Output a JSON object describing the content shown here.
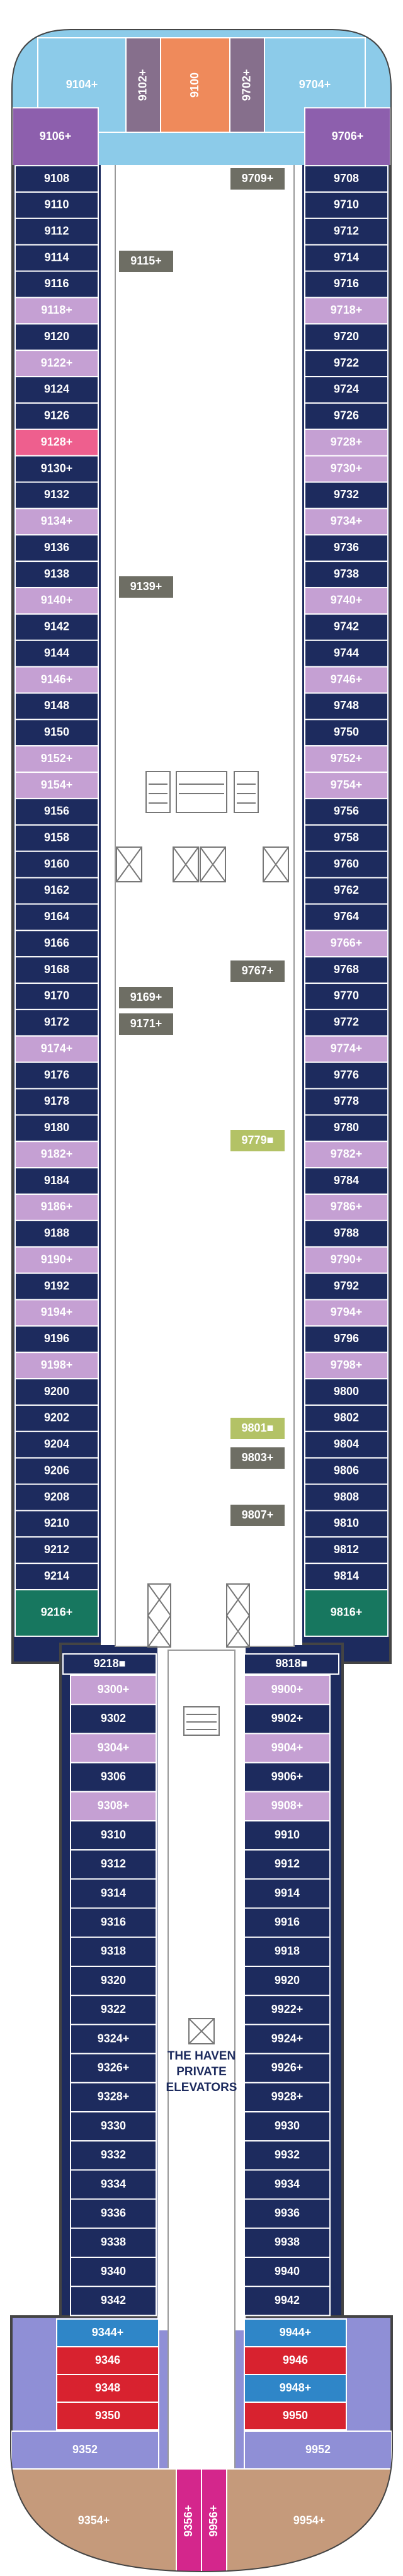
{
  "top_cells": [
    {
      "label": "9104+",
      "color": "#8ccbe9"
    },
    {
      "label": "9102+",
      "color": "#866f8c"
    },
    {
      "label": "9100",
      "color": "#ef8a5b"
    },
    {
      "label": "9702+",
      "color": "#866f8c"
    },
    {
      "label": "9704+",
      "color": "#8ccbe9"
    }
  ],
  "upper_left": [
    {
      "label": "9106+",
      "color": "#8d5fad"
    },
    {
      "label": "9108",
      "color": "#1d2b5e"
    },
    {
      "label": "9110",
      "color": "#1d2b5e"
    },
    {
      "label": "9112",
      "color": "#1d2b5e"
    },
    {
      "label": "9114",
      "color": "#1d2b5e"
    },
    {
      "label": "9116",
      "color": "#1d2b5e"
    },
    {
      "label": "9118+",
      "color": "#c5a0d3"
    },
    {
      "label": "9120",
      "color": "#1d2b5e"
    },
    {
      "label": "9122+",
      "color": "#c5a0d3"
    },
    {
      "label": "9124",
      "color": "#1d2b5e"
    },
    {
      "label": "9126",
      "color": "#1d2b5e"
    },
    {
      "label": "9128+",
      "color": "#ee5f8e"
    },
    {
      "label": "9130+",
      "color": "#1d2b5e"
    },
    {
      "label": "9132",
      "color": "#1d2b5e"
    },
    {
      "label": "9134+",
      "color": "#c5a0d3"
    },
    {
      "label": "9136",
      "color": "#1d2b5e"
    },
    {
      "label": "9138",
      "color": "#1d2b5e"
    },
    {
      "label": "9140+",
      "color": "#c5a0d3"
    },
    {
      "label": "9142",
      "color": "#1d2b5e"
    },
    {
      "label": "9144",
      "color": "#1d2b5e"
    },
    {
      "label": "9146+",
      "color": "#c5a0d3"
    },
    {
      "label": "9148",
      "color": "#1d2b5e"
    },
    {
      "label": "9150",
      "color": "#1d2b5e"
    },
    {
      "label": "9152+",
      "color": "#c5a0d3"
    },
    {
      "label": "9154+",
      "color": "#c5a0d3"
    },
    {
      "label": "9156",
      "color": "#1d2b5e"
    },
    {
      "label": "9158",
      "color": "#1d2b5e"
    },
    {
      "label": "9160",
      "color": "#1d2b5e"
    },
    {
      "label": "9162",
      "color": "#1d2b5e"
    },
    {
      "label": "9164",
      "color": "#1d2b5e"
    },
    {
      "label": "9166",
      "color": "#1d2b5e"
    },
    {
      "label": "9168",
      "color": "#1d2b5e"
    },
    {
      "label": "9170",
      "color": "#1d2b5e"
    },
    {
      "label": "9172",
      "color": "#1d2b5e"
    },
    {
      "label": "9174+",
      "color": "#c5a0d3"
    },
    {
      "label": "9176",
      "color": "#1d2b5e"
    },
    {
      "label": "9178",
      "color": "#1d2b5e"
    },
    {
      "label": "9180",
      "color": "#1d2b5e"
    },
    {
      "label": "9182+",
      "color": "#c5a0d3"
    },
    {
      "label": "9184",
      "color": "#1d2b5e"
    },
    {
      "label": "9186+",
      "color": "#c5a0d3"
    },
    {
      "label": "9188",
      "color": "#1d2b5e"
    },
    {
      "label": "9190+",
      "color": "#c5a0d3"
    },
    {
      "label": "9192",
      "color": "#1d2b5e"
    },
    {
      "label": "9194+",
      "color": "#c5a0d3"
    },
    {
      "label": "9196",
      "color": "#1d2b5e"
    },
    {
      "label": "9198+",
      "color": "#c5a0d3"
    },
    {
      "label": "9200",
      "color": "#1d2b5e"
    },
    {
      "label": "9202",
      "color": "#1d2b5e"
    },
    {
      "label": "9204",
      "color": "#1d2b5e"
    },
    {
      "label": "9206",
      "color": "#1d2b5e"
    },
    {
      "label": "9208",
      "color": "#1d2b5e"
    },
    {
      "label": "9210",
      "color": "#1d2b5e"
    },
    {
      "label": "9212",
      "color": "#1d2b5e"
    },
    {
      "label": "9214",
      "color": "#1d2b5e"
    },
    {
      "label": "9216+",
      "color": "#17775f"
    }
  ],
  "upper_right": [
    {
      "label": "9706+",
      "color": "#8d5fad"
    },
    {
      "label": "9708",
      "color": "#1d2b5e"
    },
    {
      "label": "9710",
      "color": "#1d2b5e"
    },
    {
      "label": "9712",
      "color": "#1d2b5e"
    },
    {
      "label": "9714",
      "color": "#1d2b5e"
    },
    {
      "label": "9716",
      "color": "#1d2b5e"
    },
    {
      "label": "9718+",
      "color": "#c5a0d3"
    },
    {
      "label": "9720",
      "color": "#1d2b5e"
    },
    {
      "label": "9722",
      "color": "#1d2b5e"
    },
    {
      "label": "9724",
      "color": "#1d2b5e"
    },
    {
      "label": "9726",
      "color": "#1d2b5e"
    },
    {
      "label": "9728+",
      "color": "#c5a0d3"
    },
    {
      "label": "9730+",
      "color": "#c5a0d3"
    },
    {
      "label": "9732",
      "color": "#1d2b5e"
    },
    {
      "label": "9734+",
      "color": "#c5a0d3"
    },
    {
      "label": "9736",
      "color": "#1d2b5e"
    },
    {
      "label": "9738",
      "color": "#1d2b5e"
    },
    {
      "label": "9740+",
      "color": "#c5a0d3"
    },
    {
      "label": "9742",
      "color": "#1d2b5e"
    },
    {
      "label": "9744",
      "color": "#1d2b5e"
    },
    {
      "label": "9746+",
      "color": "#c5a0d3"
    },
    {
      "label": "9748",
      "color": "#1d2b5e"
    },
    {
      "label": "9750",
      "color": "#1d2b5e"
    },
    {
      "label": "9752+",
      "color": "#c5a0d3"
    },
    {
      "label": "9754+",
      "color": "#c5a0d3"
    },
    {
      "label": "9756",
      "color": "#1d2b5e"
    },
    {
      "label": "9758",
      "color": "#1d2b5e"
    },
    {
      "label": "9760",
      "color": "#1d2b5e"
    },
    {
      "label": "9762",
      "color": "#1d2b5e"
    },
    {
      "label": "9764",
      "color": "#1d2b5e"
    },
    {
      "label": "9766+",
      "color": "#c5a0d3"
    },
    {
      "label": "9768",
      "color": "#1d2b5e"
    },
    {
      "label": "9770",
      "color": "#1d2b5e"
    },
    {
      "label": "9772",
      "color": "#1d2b5e"
    },
    {
      "label": "9774+",
      "color": "#c5a0d3"
    },
    {
      "label": "9776",
      "color": "#1d2b5e"
    },
    {
      "label": "9778",
      "color": "#1d2b5e"
    },
    {
      "label": "9780",
      "color": "#1d2b5e"
    },
    {
      "label": "9782+",
      "color": "#c5a0d3"
    },
    {
      "label": "9784",
      "color": "#1d2b5e"
    },
    {
      "label": "9786+",
      "color": "#c5a0d3"
    },
    {
      "label": "9788",
      "color": "#1d2b5e"
    },
    {
      "label": "9790+",
      "color": "#c5a0d3"
    },
    {
      "label": "9792",
      "color": "#1d2b5e"
    },
    {
      "label": "9794+",
      "color": "#c5a0d3"
    },
    {
      "label": "9796",
      "color": "#1d2b5e"
    },
    {
      "label": "9798+",
      "color": "#c5a0d3"
    },
    {
      "label": "9800",
      "color": "#1d2b5e"
    },
    {
      "label": "9802",
      "color": "#1d2b5e"
    },
    {
      "label": "9804",
      "color": "#1d2b5e"
    },
    {
      "label": "9806",
      "color": "#1d2b5e"
    },
    {
      "label": "9808",
      "color": "#1d2b5e"
    },
    {
      "label": "9810",
      "color": "#1d2b5e"
    },
    {
      "label": "9812",
      "color": "#1d2b5e"
    },
    {
      "label": "9814",
      "color": "#1d2b5e"
    },
    {
      "label": "9816+",
      "color": "#17775f"
    }
  ],
  "inner_cabins": [
    {
      "label": "9709+",
      "color": "#6e6e64"
    },
    {
      "label": "9115+",
      "color": "#6e6e64"
    },
    {
      "label": "9139+",
      "color": "#6e6e64"
    },
    {
      "label": "9767+",
      "color": "#6e6e64"
    },
    {
      "label": "9169+",
      "color": "#6e6e64"
    },
    {
      "label": "9171+",
      "color": "#6e6e64"
    },
    {
      "label": "9779■",
      "color": "#b3c266"
    },
    {
      "label": "9801■",
      "color": "#b3c266"
    },
    {
      "label": "9803+",
      "color": "#6e6e64"
    },
    {
      "label": "9807+",
      "color": "#6e6e64"
    }
  ],
  "lower_left": [
    {
      "label": "9218■",
      "color": "#1d2b5e"
    },
    {
      "label": "9300+",
      "color": "#c5a0d3"
    },
    {
      "label": "9302",
      "color": "#1d2b5e"
    },
    {
      "label": "9304+",
      "color": "#c5a0d3"
    },
    {
      "label": "9306",
      "color": "#1d2b5e"
    },
    {
      "label": "9308+",
      "color": "#c5a0d3"
    },
    {
      "label": "9310",
      "color": "#1d2b5e"
    },
    {
      "label": "9312",
      "color": "#1d2b5e"
    },
    {
      "label": "9314",
      "color": "#1d2b5e"
    },
    {
      "label": "9316",
      "color": "#1d2b5e"
    },
    {
      "label": "9318",
      "color": "#1d2b5e"
    },
    {
      "label": "9320",
      "color": "#1d2b5e"
    },
    {
      "label": "9322",
      "color": "#1d2b5e"
    },
    {
      "label": "9324+",
      "color": "#1d2b5e"
    },
    {
      "label": "9326+",
      "color": "#1d2b5e"
    },
    {
      "label": "9328+",
      "color": "#1d2b5e"
    },
    {
      "label": "9330",
      "color": "#1d2b5e"
    },
    {
      "label": "9332",
      "color": "#1d2b5e"
    },
    {
      "label": "9334",
      "color": "#1d2b5e"
    },
    {
      "label": "9336",
      "color": "#1d2b5e"
    },
    {
      "label": "9338",
      "color": "#1d2b5e"
    },
    {
      "label": "9340",
      "color": "#1d2b5e"
    },
    {
      "label": "9342",
      "color": "#1d2b5e"
    }
  ],
  "lower_right": [
    {
      "label": "9818■",
      "color": "#1d2b5e"
    },
    {
      "label": "9900+",
      "color": "#c5a0d3"
    },
    {
      "label": "9902+",
      "color": "#1d2b5e"
    },
    {
      "label": "9904+",
      "color": "#c5a0d3"
    },
    {
      "label": "9906+",
      "color": "#1d2b5e"
    },
    {
      "label": "9908+",
      "color": "#c5a0d3"
    },
    {
      "label": "9910",
      "color": "#1d2b5e"
    },
    {
      "label": "9912",
      "color": "#1d2b5e"
    },
    {
      "label": "9914",
      "color": "#1d2b5e"
    },
    {
      "label": "9916",
      "color": "#1d2b5e"
    },
    {
      "label": "9918",
      "color": "#1d2b5e"
    },
    {
      "label": "9920",
      "color": "#1d2b5e"
    },
    {
      "label": "9922+",
      "color": "#1d2b5e"
    },
    {
      "label": "9924+",
      "color": "#1d2b5e"
    },
    {
      "label": "9926+",
      "color": "#1d2b5e"
    },
    {
      "label": "9928+",
      "color": "#1d2b5e"
    },
    {
      "label": "9930",
      "color": "#1d2b5e"
    },
    {
      "label": "9932",
      "color": "#1d2b5e"
    },
    {
      "label": "9934",
      "color": "#1d2b5e"
    },
    {
      "label": "9936",
      "color": "#1d2b5e"
    },
    {
      "label": "9938",
      "color": "#1d2b5e"
    },
    {
      "label": "9940",
      "color": "#1d2b5e"
    },
    {
      "label": "9942",
      "color": "#1d2b5e"
    }
  ],
  "bulb_left": [
    {
      "label": "9344+",
      "color": "#2f86c8"
    },
    {
      "label": "9346",
      "color": "#d8222f"
    },
    {
      "label": "9348",
      "color": "#d8222f"
    },
    {
      "label": "9350",
      "color": "#d8222f"
    },
    {
      "label": "9352",
      "color": "#8f8fd6"
    }
  ],
  "bulb_right": [
    {
      "label": "9944+",
      "color": "#2f86c8"
    },
    {
      "label": "9946",
      "color": "#d8222f"
    },
    {
      "label": "9948+",
      "color": "#2f86c8"
    },
    {
      "label": "9950",
      "color": "#d8222f"
    },
    {
      "label": "9952",
      "color": "#8f8fd6"
    }
  ],
  "bottom": [
    {
      "label": "9354+",
      "color": "#c59a7b"
    },
    {
      "label": "9356+",
      "color": "#d4268c"
    },
    {
      "label": "9956+",
      "color": "#d4268c"
    },
    {
      "label": "9954+",
      "color": "#c59a7b"
    }
  ],
  "haven_label": [
    "THE HAVEN",
    "PRIVATE",
    "ELEVATORS"
  ]
}
